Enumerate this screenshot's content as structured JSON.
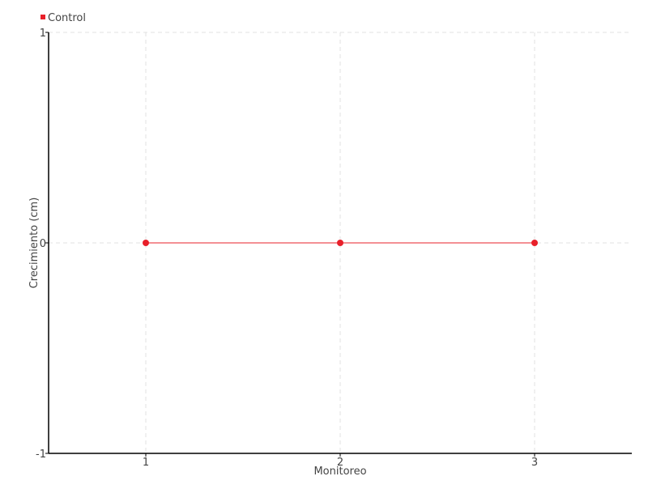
{
  "chart_data": {
    "type": "line",
    "title": "",
    "xlabel": "Monitoreo",
    "ylabel": "Crecimiento (cm)",
    "x": [
      1,
      2,
      3
    ],
    "xlim": [
      0.5,
      3.5
    ],
    "ylim": [
      -1,
      1
    ],
    "xticks": [
      1,
      2,
      3
    ],
    "yticks": [
      -1,
      0,
      1
    ],
    "grid": true,
    "legend_position": "top-left",
    "series": [
      {
        "name": "Control",
        "color": "#e8202a",
        "values": [
          0,
          0,
          0
        ]
      }
    ]
  }
}
